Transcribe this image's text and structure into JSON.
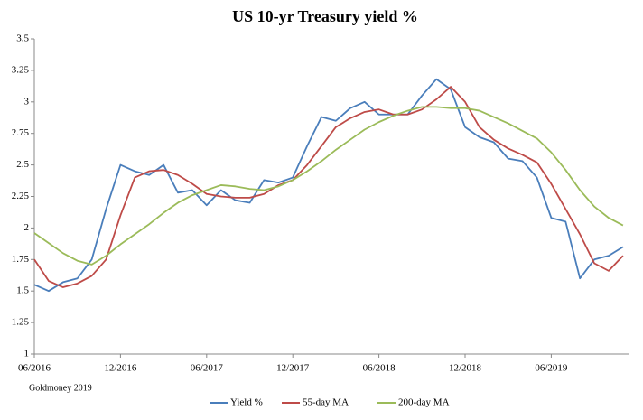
{
  "chart_data": {
    "type": "line",
    "title": "US 10-yr Treasury yield %",
    "source": "Goldmoney 2019",
    "x": [
      "06/2016",
      "07/2016",
      "08/2016",
      "09/2016",
      "10/2016",
      "11/2016",
      "12/2016",
      "01/2017",
      "02/2017",
      "03/2017",
      "04/2017",
      "05/2017",
      "06/2017",
      "07/2017",
      "08/2017",
      "09/2017",
      "10/2017",
      "11/2017",
      "12/2017",
      "01/2018",
      "02/2018",
      "03/2018",
      "04/2018",
      "05/2018",
      "06/2018",
      "07/2018",
      "08/2018",
      "09/2018",
      "10/2018",
      "11/2018",
      "12/2018",
      "01/2019",
      "02/2019",
      "03/2019",
      "04/2019",
      "05/2019",
      "06/2019",
      "07/2019",
      "08/2019",
      "09/2019",
      "10/2019",
      "11/2019"
    ],
    "xticks": [
      "06/2016",
      "12/2016",
      "06/2017",
      "12/2017",
      "06/2018",
      "12/2018",
      "06/2019"
    ],
    "series": [
      {
        "name": "Yield %",
        "color": "#4a7ebb",
        "values": [
          1.55,
          1.5,
          1.57,
          1.6,
          1.75,
          2.15,
          2.5,
          2.45,
          2.42,
          2.5,
          2.28,
          2.3,
          2.18,
          2.3,
          2.22,
          2.2,
          2.38,
          2.36,
          2.4,
          2.65,
          2.88,
          2.85,
          2.95,
          3.0,
          2.9,
          2.9,
          2.9,
          3.05,
          3.18,
          3.1,
          2.8,
          2.72,
          2.68,
          2.55,
          2.53,
          2.4,
          2.08,
          2.05,
          1.6,
          1.75,
          1.78,
          1.85
        ]
      },
      {
        "name": "55-day MA",
        "color": "#be4b48",
        "values": [
          1.75,
          1.58,
          1.53,
          1.56,
          1.62,
          1.75,
          2.1,
          2.4,
          2.45,
          2.46,
          2.42,
          2.35,
          2.27,
          2.25,
          2.24,
          2.24,
          2.27,
          2.34,
          2.38,
          2.5,
          2.65,
          2.8,
          2.87,
          2.92,
          2.94,
          2.9,
          2.9,
          2.94,
          3.02,
          3.12,
          3.0,
          2.8,
          2.7,
          2.63,
          2.58,
          2.52,
          2.35,
          2.15,
          1.95,
          1.72,
          1.66,
          1.78
        ]
      },
      {
        "name": "200-day MA",
        "color": "#9bbb59",
        "values": [
          1.96,
          1.88,
          1.8,
          1.74,
          1.71,
          1.78,
          1.87,
          1.95,
          2.03,
          2.12,
          2.2,
          2.26,
          2.3,
          2.34,
          2.33,
          2.31,
          2.3,
          2.33,
          2.38,
          2.45,
          2.53,
          2.62,
          2.7,
          2.78,
          2.84,
          2.89,
          2.93,
          2.96,
          2.96,
          2.95,
          2.95,
          2.93,
          2.88,
          2.83,
          2.77,
          2.71,
          2.6,
          2.46,
          2.3,
          2.17,
          2.08,
          2.02
        ]
      }
    ],
    "ylim": [
      1,
      3.5
    ],
    "yticks": [
      1,
      1.25,
      1.5,
      1.75,
      2,
      2.25,
      2.5,
      2.75,
      3,
      3.25,
      3.5
    ],
    "grid": false,
    "legend": "bottom"
  }
}
